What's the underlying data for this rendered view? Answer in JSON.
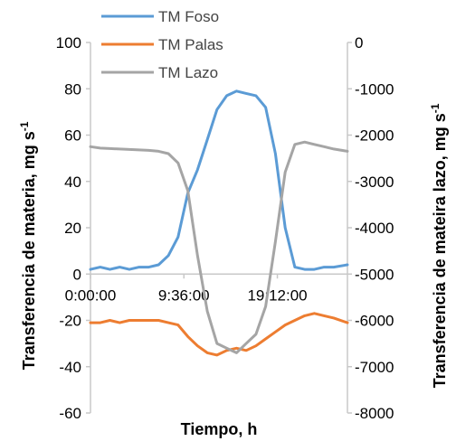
{
  "chart_data": {
    "type": "line",
    "xlabel": "Tiempo, h",
    "ylabel_left": "Transferencia de materia, mg s",
    "ylabel_left_sup": "-1",
    "ylabel_right": "Transferencia de mateira lazo, mg s",
    "ylabel_right_sup": "-1",
    "x_ticks": [
      "0:00:00",
      "9:36:00",
      "19:12:00"
    ],
    "x_tick_hours": [
      0,
      9.6,
      19.2
    ],
    "xlim_hours": [
      0,
      26.4
    ],
    "ylim_left": [
      -60,
      100
    ],
    "yticks_left": [
      100,
      80,
      60,
      40,
      20,
      0,
      -20,
      -40,
      -60
    ],
    "ylim_right": [
      -8000,
      0
    ],
    "yticks_right": [
      0,
      -1000,
      -2000,
      -3000,
      -4000,
      -5000,
      -6000,
      -7000,
      -8000
    ],
    "grid": false,
    "legend_position": "top-left",
    "series": [
      {
        "name": "TM Foso",
        "axis": "left",
        "color": "#5b9bd5",
        "x": [
          0,
          1,
          2,
          3,
          4,
          5,
          6,
          7,
          8,
          9,
          10,
          11,
          12,
          13,
          14,
          15,
          16,
          17,
          18,
          19,
          20,
          21,
          22,
          23,
          24,
          25,
          26.4
        ],
        "y": [
          2,
          3,
          2,
          3,
          2,
          3,
          3,
          4,
          8,
          16,
          35,
          45,
          58,
          71,
          77,
          79,
          78,
          77,
          72,
          52,
          20,
          3,
          2,
          2,
          3,
          3,
          4
        ]
      },
      {
        "name": "TM Palas",
        "axis": "left",
        "color": "#ed7d31",
        "x": [
          0,
          1,
          2,
          3,
          4,
          5,
          6,
          7,
          8,
          9,
          10,
          11,
          12,
          13,
          14,
          15,
          16,
          17,
          18,
          19,
          20,
          21,
          22,
          23,
          24,
          25,
          26.4
        ],
        "y": [
          -21,
          -21,
          -20,
          -21,
          -20,
          -20,
          -20,
          -20,
          -21,
          -22,
          -27,
          -31,
          -34,
          -35,
          -33,
          -32,
          -33,
          -31,
          -28,
          -25,
          -22,
          -20,
          -18,
          -17,
          -18,
          -19,
          -21
        ]
      },
      {
        "name": "TM Lazo",
        "axis": "right",
        "color": "#a5a5a5",
        "x": [
          0,
          1,
          2,
          3,
          4,
          5,
          6,
          7,
          8,
          9,
          10,
          11,
          12,
          13,
          14,
          15,
          16,
          17,
          18,
          19,
          20,
          21,
          22,
          23,
          24,
          25,
          26.4
        ],
        "y": [
          -2250,
          -2280,
          -2290,
          -2300,
          -2310,
          -2320,
          -2330,
          -2350,
          -2400,
          -2600,
          -3200,
          -4600,
          -5800,
          -6500,
          -6600,
          -6700,
          -6500,
          -6300,
          -5700,
          -4300,
          -2800,
          -2200,
          -2150,
          -2200,
          -2250,
          -2300,
          -2350
        ]
      }
    ]
  }
}
